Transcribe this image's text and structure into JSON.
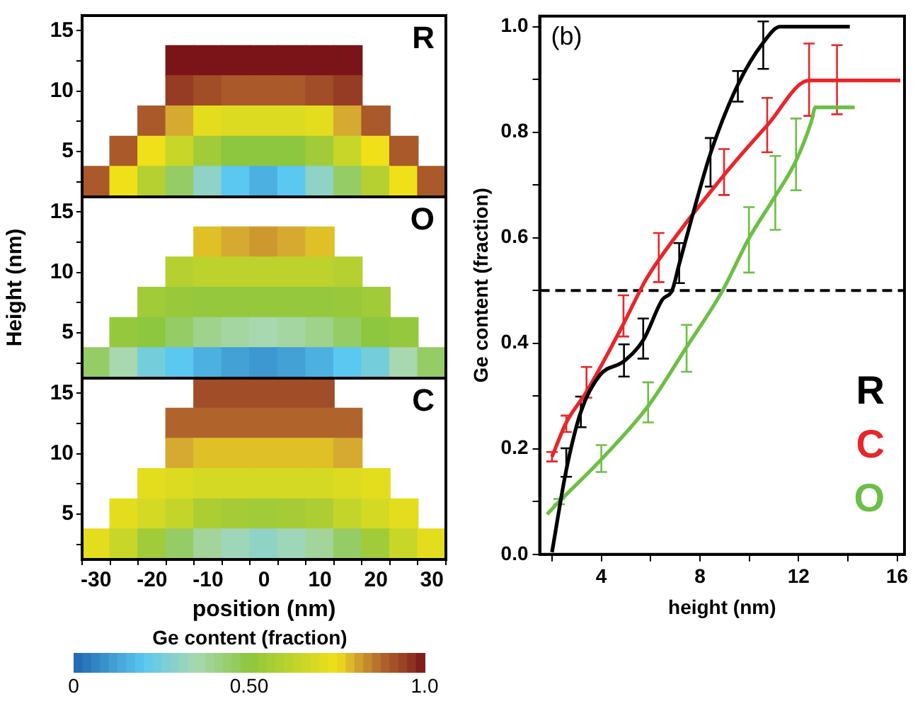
{
  "chart_data": [
    {
      "type": "heatmap",
      "annotations": [
        "R",
        "O",
        "C"
      ],
      "ylabel": "Height (nm)",
      "xlabel": "position (nm)",
      "clabel": "Ge content (fraction)",
      "categories": [
        "-30",
        null,
        "-20",
        null,
        "-10",
        null,
        "0",
        null,
        "10",
        null,
        "20",
        null,
        "30"
      ],
      "y_categories": [
        "15",
        null,
        "10",
        null,
        "5",
        null,
        "15",
        null,
        "10",
        null,
        "5",
        null,
        "15",
        null,
        "10",
        null,
        "5",
        null
      ],
      "cells": [
        [
          null,
          null,
          null,
          null,
          null,
          null,
          null,
          null,
          null,
          null,
          null,
          null,
          null
        ],
        [
          null,
          null,
          null,
          1.0,
          1.0,
          1.0,
          1.0,
          1.0,
          1.0,
          1.0,
          null,
          null,
          null
        ],
        [
          null,
          null,
          null,
          0.95,
          0.92,
          0.9,
          0.9,
          0.9,
          0.92,
          0.95,
          null,
          null,
          null
        ],
        [
          null,
          null,
          0.9,
          0.8,
          0.72,
          0.7,
          0.7,
          0.7,
          0.72,
          0.8,
          0.9,
          null,
          null
        ],
        [
          null,
          0.9,
          0.75,
          0.65,
          0.55,
          0.5,
          0.5,
          0.5,
          0.55,
          0.65,
          0.75,
          0.9,
          null
        ],
        [
          0.9,
          0.75,
          0.6,
          0.45,
          0.3,
          0.2,
          0.15,
          0.2,
          0.3,
          0.45,
          0.6,
          0.75,
          0.9
        ],
        [
          null,
          null,
          null,
          null,
          null,
          null,
          null,
          null,
          null,
          null,
          null,
          null,
          null
        ],
        [
          null,
          null,
          null,
          null,
          0.78,
          0.8,
          0.82,
          0.8,
          0.78,
          null,
          null,
          null,
          null
        ],
        [
          null,
          null,
          null,
          0.6,
          0.62,
          0.62,
          0.62,
          0.62,
          0.62,
          0.6,
          null,
          null,
          null
        ],
        [
          null,
          null,
          0.55,
          0.53,
          0.52,
          0.52,
          0.52,
          0.52,
          0.52,
          0.53,
          0.55,
          null,
          null
        ],
        [
          null,
          0.52,
          0.5,
          0.45,
          0.4,
          0.37,
          0.35,
          0.37,
          0.4,
          0.45,
          0.5,
          0.52,
          null
        ],
        [
          0.45,
          0.35,
          0.25,
          0.2,
          0.15,
          0.12,
          0.1,
          0.12,
          0.15,
          0.2,
          0.25,
          0.35,
          0.45
        ],
        [
          null,
          null,
          null,
          null,
          0.92,
          0.92,
          0.92,
          0.92,
          0.92,
          null,
          null,
          null,
          null
        ],
        [
          null,
          null,
          null,
          0.88,
          0.88,
          0.88,
          0.88,
          0.88,
          0.88,
          0.88,
          null,
          null,
          null
        ],
        [
          null,
          null,
          null,
          0.8,
          0.78,
          0.78,
          0.78,
          0.78,
          0.78,
          0.8,
          null,
          null,
          null
        ],
        [
          null,
          null,
          0.72,
          0.7,
          0.68,
          0.68,
          0.68,
          0.68,
          0.68,
          0.7,
          0.72,
          null,
          null
        ],
        [
          null,
          0.72,
          0.68,
          0.64,
          0.58,
          0.56,
          0.55,
          0.56,
          0.58,
          0.64,
          0.68,
          0.72,
          null
        ],
        [
          0.72,
          0.65,
          0.55,
          0.45,
          0.38,
          0.33,
          0.3,
          0.33,
          0.38,
          0.45,
          0.55,
          0.65,
          0.72
        ]
      ],
      "clim": [
        0,
        1
      ],
      "cticks": [
        0,
        {
          "value": 0.5,
          "label": "0.50"
        },
        {
          "value": 1,
          "label": "1.0"
        }
      ]
    },
    {
      "type": "line",
      "xlabel": "height (nm)",
      "ylabel": "Ge content (fraction)",
      "annotations": [
        "(b)"
      ],
      "xlim": [
        1.5,
        16.3
      ],
      "ylim": [
        0,
        1.02
      ],
      "xticks": [
        {
          "value": 2,
          "label": null
        },
        4,
        {
          "value": 6,
          "label": null
        },
        8,
        {
          "value": 10,
          "label": null
        },
        12,
        {
          "value": 14,
          "label": null
        },
        16
      ],
      "yticks": [
        {
          "value": 0,
          "label": "0.0"
        },
        {
          "value": 0.1,
          "label": null
        },
        0.2,
        {
          "value": 0.3,
          "label": null
        },
        0.4,
        {
          "value": 0.5,
          "label": null
        },
        0.6,
        {
          "value": 0.7,
          "label": null
        },
        0.8,
        {
          "value": 0.9,
          "label": null
        },
        {
          "value": 1,
          "label": "1.0"
        }
      ],
      "grid": false,
      "marker": "none",
      "legend": "bottom right",
      "ref_lines": [
        {
          "axis": "y",
          "value": 0.5,
          "color": "#000000",
          "line_style": "dashed"
        }
      ],
      "series": [
        {
          "name": "R",
          "color": "#000000",
          "x": [
            2.0,
            2.58,
            3.17,
            3.95,
            4.92,
            5.7,
            6.48,
            6.87,
            7.16,
            7.65,
            8.43,
            9.54,
            10.57,
            11.26,
            14.08
          ],
          "values": [
            0.004,
            0.16,
            0.27,
            0.34,
            0.366,
            0.406,
            0.483,
            0.5,
            0.55,
            0.634,
            0.76,
            0.89,
            0.97,
            1.0,
            1.0
          ],
          "errors": [
            null,
            [
              0.147,
              0.201
            ],
            [
              0.241,
              0.299
            ],
            null,
            [
              0.337,
              0.398
            ],
            [
              0.371,
              0.447
            ],
            null,
            null,
            [
              0.514,
              0.59
            ],
            null,
            [
              0.697,
              0.789
            ],
            [
              0.858,
              0.916
            ],
            [
              0.92,
              1.01
            ],
            null,
            null
          ]
        },
        {
          "name": "C",
          "color": "#e8262a",
          "x": [
            2.0,
            2.58,
            3.4,
            4.9,
            5.78,
            6.33,
            8.98,
            10.73,
            12.43,
            13.56,
            16.13
          ],
          "values": [
            0.185,
            0.25,
            0.308,
            0.437,
            0.518,
            0.558,
            0.719,
            0.813,
            0.898,
            0.898,
            0.898
          ],
          "errors": [
            [
              0.176,
              0.194
            ],
            [
              0.232,
              0.263
            ],
            [
              0.297,
              0.355
            ],
            [
              0.413,
              0.491
            ],
            null,
            [
              0.516,
              0.609
            ],
            [
              0.681,
              0.768
            ],
            [
              0.762,
              0.865
            ],
            [
              0.831,
              0.968
            ],
            [
              0.834,
              0.965
            ],
            null
          ]
        },
        {
          "name": "O",
          "color": "#6cbf45",
          "x": [
            1.8,
            2.29,
            4.0,
            5.9,
            7.46,
            8.92,
            9.99,
            11.06,
            11.9,
            12.52,
            12.68,
            14.28
          ],
          "values": [
            0.076,
            0.1,
            0.18,
            0.281,
            0.393,
            0.5,
            0.599,
            0.679,
            0.746,
            0.82,
            0.847,
            0.847
          ],
          "errors": [
            null,
            [
              0.095,
              0.105
            ],
            [
              0.156,
              0.207
            ],
            [
              0.25,
              0.326
            ],
            [
              0.346,
              0.435
            ],
            null,
            [
              0.534,
              0.658
            ],
            [
              0.615,
              0.755
            ],
            [
              0.69,
              0.826
            ],
            null,
            null,
            null
          ]
        }
      ]
    }
  ]
}
